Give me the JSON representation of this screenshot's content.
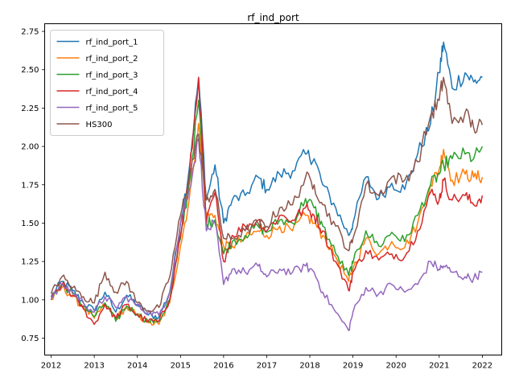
{
  "chart_data": {
    "type": "line",
    "title": "rf_ind_port",
    "xlabel": "",
    "ylabel": "",
    "xlim": [
      2011.85,
      2022.45
    ],
    "ylim": [
      0.64,
      2.8
    ],
    "x_ticks": [
      "2012",
      "2013",
      "2014",
      "2015",
      "2016",
      "2017",
      "2018",
      "2019",
      "2020",
      "2021",
      "2022"
    ],
    "y_ticks": [
      "0.75",
      "1.00",
      "1.25",
      "1.50",
      "1.75",
      "2.00",
      "2.25",
      "2.50",
      "2.75"
    ],
    "grid": false,
    "legend_position": "top-left",
    "series": [
      {
        "name": "rf_ind_port_1",
        "color": "#1f77b4",
        "x": [
          2012.0,
          2012.25,
          2012.5,
          2012.75,
          2013.0,
          2013.25,
          2013.5,
          2013.75,
          2014.0,
          2014.25,
          2014.5,
          2014.75,
          2015.0,
          2015.2,
          2015.42,
          2015.6,
          2015.8,
          2016.0,
          2016.2,
          2016.5,
          2016.8,
          2017.0,
          2017.3,
          2017.6,
          2017.9,
          2018.1,
          2018.3,
          2018.6,
          2018.9,
          2019.0,
          2019.3,
          2019.6,
          2019.9,
          2020.2,
          2020.5,
          2020.8,
          2021.0,
          2021.1,
          2021.3,
          2021.6,
          2021.8,
          2022.0
        ],
        "values": [
          1.02,
          1.12,
          1.06,
          0.98,
          0.93,
          1.05,
          0.92,
          1.03,
          0.97,
          0.9,
          0.89,
          1.05,
          1.5,
          1.85,
          2.45,
          1.65,
          1.88,
          1.5,
          1.65,
          1.68,
          1.8,
          1.72,
          1.82,
          1.84,
          1.95,
          1.92,
          1.75,
          1.6,
          1.42,
          1.5,
          1.8,
          1.66,
          1.76,
          1.72,
          1.95,
          2.15,
          2.48,
          2.68,
          2.38,
          2.48,
          2.42,
          2.45
        ]
      },
      {
        "name": "rf_ind_port_2",
        "color": "#ff7f0e",
        "x": [
          2012.0,
          2012.25,
          2012.5,
          2012.75,
          2013.0,
          2013.25,
          2013.5,
          2013.75,
          2014.0,
          2014.25,
          2014.5,
          2014.75,
          2015.0,
          2015.2,
          2015.42,
          2015.6,
          2015.8,
          2016.0,
          2016.2,
          2016.5,
          2016.8,
          2017.0,
          2017.3,
          2017.6,
          2017.9,
          2018.1,
          2018.3,
          2018.6,
          2018.9,
          2019.0,
          2019.3,
          2019.6,
          2019.9,
          2020.2,
          2020.5,
          2020.8,
          2021.0,
          2021.1,
          2021.3,
          2021.6,
          2021.8,
          2022.0
        ],
        "values": [
          1.0,
          1.08,
          1.02,
          0.95,
          0.88,
          0.97,
          0.88,
          0.95,
          0.9,
          0.85,
          0.84,
          0.98,
          1.35,
          1.65,
          2.15,
          1.55,
          1.55,
          1.35,
          1.35,
          1.4,
          1.45,
          1.42,
          1.48,
          1.45,
          1.55,
          1.5,
          1.42,
          1.28,
          1.12,
          1.2,
          1.4,
          1.3,
          1.38,
          1.34,
          1.5,
          1.75,
          1.85,
          1.98,
          1.78,
          1.82,
          1.8,
          1.8
        ]
      },
      {
        "name": "rf_ind_port_3",
        "color": "#2ca02c",
        "x": [
          2012.0,
          2012.25,
          2012.5,
          2012.75,
          2013.0,
          2013.25,
          2013.5,
          2013.75,
          2014.0,
          2014.25,
          2014.5,
          2014.75,
          2015.0,
          2015.2,
          2015.42,
          2015.6,
          2015.8,
          2016.0,
          2016.2,
          2016.5,
          2016.8,
          2017.0,
          2017.3,
          2017.6,
          2017.9,
          2018.1,
          2018.3,
          2018.6,
          2018.9,
          2019.0,
          2019.3,
          2019.6,
          2019.9,
          2020.2,
          2020.5,
          2020.8,
          2021.0,
          2021.1,
          2021.3,
          2021.6,
          2021.8,
          2022.0
        ],
        "values": [
          1.01,
          1.1,
          1.04,
          0.96,
          0.89,
          0.98,
          0.86,
          0.96,
          0.91,
          0.86,
          0.86,
          1.0,
          1.4,
          1.75,
          2.3,
          1.5,
          1.52,
          1.3,
          1.38,
          1.42,
          1.48,
          1.44,
          1.52,
          1.5,
          1.66,
          1.6,
          1.48,
          1.3,
          1.16,
          1.24,
          1.45,
          1.35,
          1.44,
          1.38,
          1.55,
          1.75,
          1.82,
          1.88,
          1.92,
          1.95,
          1.92,
          2.0
        ]
      },
      {
        "name": "rf_ind_port_4",
        "color": "#d62728",
        "x": [
          2012.0,
          2012.25,
          2012.5,
          2012.75,
          2013.0,
          2013.25,
          2013.5,
          2013.75,
          2014.0,
          2014.25,
          2014.5,
          2014.75,
          2015.0,
          2015.2,
          2015.42,
          2015.6,
          2015.8,
          2016.0,
          2016.2,
          2016.5,
          2016.8,
          2017.0,
          2017.3,
          2017.6,
          2017.9,
          2018.1,
          2018.3,
          2018.6,
          2018.9,
          2019.0,
          2019.3,
          2019.6,
          2019.9,
          2020.2,
          2020.5,
          2020.8,
          2021.0,
          2021.1,
          2021.3,
          2021.6,
          2021.8,
          2022.0
        ],
        "values": [
          1.0,
          1.1,
          1.03,
          0.94,
          0.84,
          0.97,
          0.88,
          0.97,
          0.9,
          0.86,
          0.86,
          1.0,
          1.42,
          1.8,
          2.45,
          1.5,
          1.7,
          1.25,
          1.42,
          1.48,
          1.52,
          1.45,
          1.55,
          1.52,
          1.6,
          1.55,
          1.45,
          1.25,
          1.06,
          1.18,
          1.32,
          1.26,
          1.3,
          1.28,
          1.45,
          1.7,
          1.65,
          1.78,
          1.65,
          1.68,
          1.62,
          1.68
        ]
      },
      {
        "name": "rf_ind_port_5",
        "color": "#9467bd",
        "x": [
          2012.0,
          2012.25,
          2012.5,
          2012.75,
          2013.0,
          2013.25,
          2013.5,
          2013.75,
          2014.0,
          2014.25,
          2014.5,
          2014.75,
          2015.0,
          2015.2,
          2015.42,
          2015.6,
          2015.8,
          2016.0,
          2016.2,
          2016.5,
          2016.8,
          2017.0,
          2017.3,
          2017.6,
          2017.9,
          2018.1,
          2018.3,
          2018.6,
          2018.9,
          2019.0,
          2019.3,
          2019.6,
          2019.9,
          2020.2,
          2020.5,
          2020.8,
          2021.0,
          2021.1,
          2021.3,
          2021.6,
          2021.8,
          2022.0
        ],
        "values": [
          1.0,
          1.1,
          1.05,
          0.98,
          0.92,
          1.02,
          0.95,
          1.02,
          0.96,
          0.92,
          0.9,
          1.05,
          1.5,
          1.72,
          2.05,
          1.45,
          1.5,
          1.1,
          1.2,
          1.18,
          1.22,
          1.15,
          1.2,
          1.18,
          1.22,
          1.18,
          1.05,
          0.92,
          0.8,
          0.92,
          1.08,
          1.04,
          1.1,
          1.05,
          1.1,
          1.25,
          1.2,
          1.22,
          1.18,
          1.15,
          1.14,
          1.18
        ]
      },
      {
        "name": "HS300",
        "color": "#8c564b",
        "x": [
          2012.0,
          2012.25,
          2012.5,
          2012.75,
          2013.0,
          2013.25,
          2013.5,
          2013.75,
          2014.0,
          2014.25,
          2014.5,
          2014.75,
          2015.0,
          2015.2,
          2015.42,
          2015.6,
          2015.8,
          2016.0,
          2016.2,
          2016.5,
          2016.8,
          2017.0,
          2017.3,
          2017.6,
          2017.9,
          2018.1,
          2018.3,
          2018.6,
          2018.9,
          2019.0,
          2019.3,
          2019.6,
          2019.9,
          2020.2,
          2020.5,
          2020.8,
          2021.0,
          2021.1,
          2021.3,
          2021.6,
          2021.8,
          2022.0
        ],
        "values": [
          1.04,
          1.15,
          1.08,
          1.02,
          0.98,
          1.18,
          1.05,
          1.12,
          0.98,
          0.93,
          0.95,
          1.15,
          1.55,
          1.8,
          2.08,
          1.65,
          1.72,
          1.4,
          1.4,
          1.45,
          1.5,
          1.48,
          1.6,
          1.62,
          1.8,
          1.75,
          1.62,
          1.48,
          1.32,
          1.4,
          1.75,
          1.68,
          1.8,
          1.78,
          1.9,
          2.2,
          2.3,
          2.45,
          2.15,
          2.22,
          2.12,
          2.14
        ]
      }
    ]
  }
}
